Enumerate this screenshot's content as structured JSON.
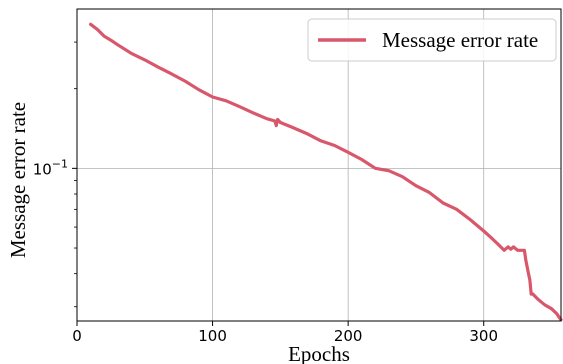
{
  "chart_data": {
    "type": "line",
    "xlabel": "Epochs",
    "ylabel": "Message error rate",
    "xlim": [
      0,
      357
    ],
    "ylim": [
      0.0265,
      0.4
    ],
    "yscale": "log",
    "xticks": [
      0,
      100,
      200,
      300
    ],
    "xtick_labels": [
      "0",
      "100",
      "200",
      "300"
    ],
    "ytick_labels": [
      {
        "base": "10",
        "exp": "−1",
        "value": 0.1
      }
    ],
    "grid": true,
    "legend": {
      "position": "top-right"
    },
    "colors": {
      "series": "#d9576b",
      "grid": "#b0b0b0",
      "axis": "#000000"
    },
    "series": [
      {
        "name": "Message error rate",
        "x": [
          10,
          15,
          20,
          25,
          30,
          40,
          50,
          60,
          70,
          80,
          90,
          100,
          110,
          120,
          130,
          140,
          146,
          147,
          148,
          150,
          160,
          170,
          180,
          190,
          200,
          210,
          220,
          230,
          240,
          250,
          260,
          270,
          280,
          290,
          300,
          305,
          310,
          315,
          318,
          320,
          322,
          325,
          330,
          331,
          333,
          334,
          335,
          336,
          340,
          345,
          350,
          354,
          356,
          357
        ],
        "y": [
          0.35,
          0.335,
          0.316,
          0.305,
          0.293,
          0.272,
          0.257,
          0.241,
          0.227,
          0.213,
          0.198,
          0.186,
          0.18,
          0.171,
          0.162,
          0.154,
          0.151,
          0.145,
          0.153,
          0.149,
          0.142,
          0.135,
          0.127,
          0.122,
          0.115,
          0.108,
          0.1,
          0.098,
          0.093,
          0.086,
          0.081,
          0.074,
          0.07,
          0.064,
          0.058,
          0.055,
          0.052,
          0.049,
          0.0505,
          0.0495,
          0.0505,
          0.049,
          0.049,
          0.045,
          0.04,
          0.038,
          0.0335,
          0.0336,
          0.032,
          0.0305,
          0.0295,
          0.0282,
          0.0272,
          0.0268
        ]
      }
    ]
  }
}
